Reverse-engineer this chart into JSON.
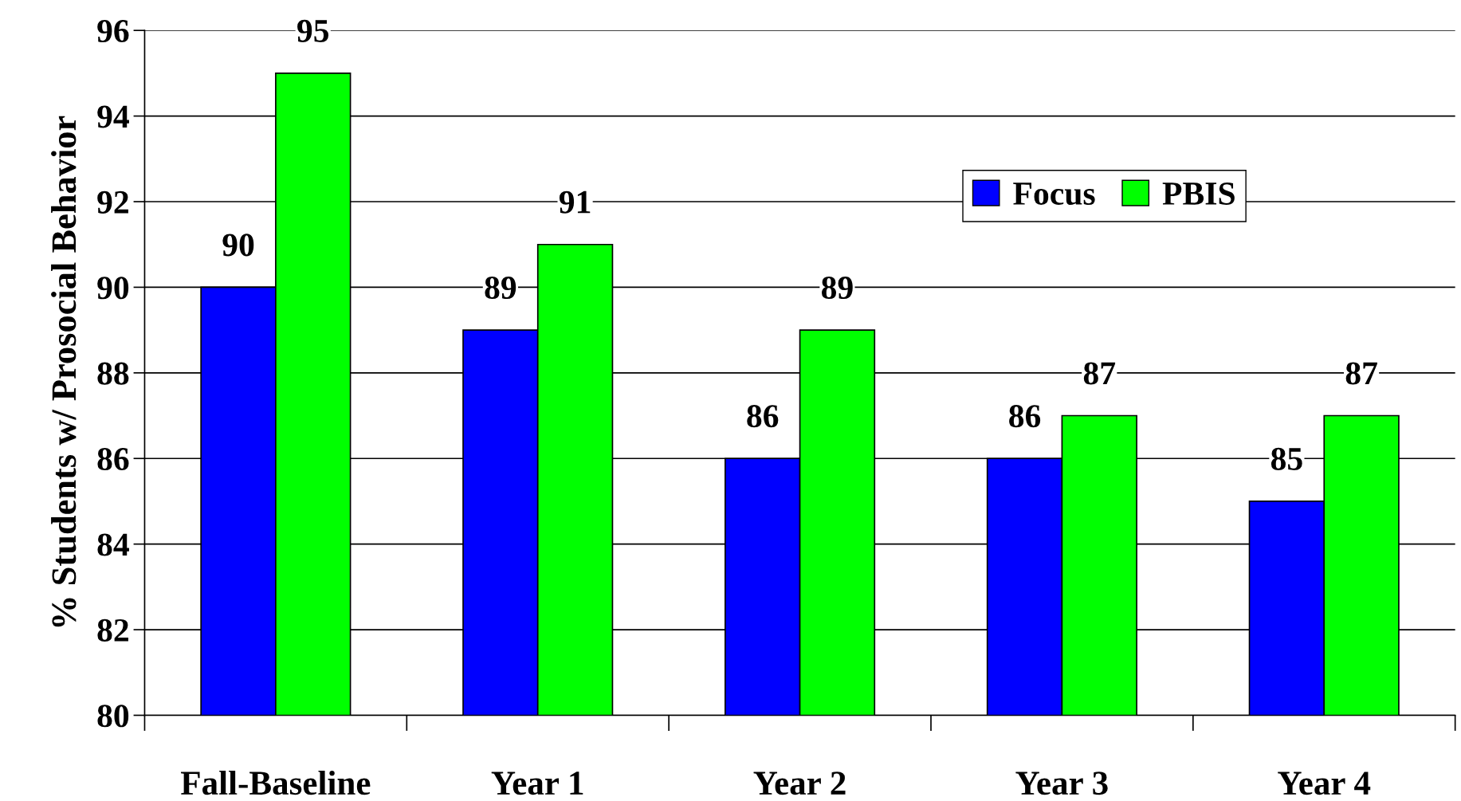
{
  "chart_data": {
    "type": "bar",
    "ylabel": "% Students w/ Prosocial Behavior",
    "categories": [
      "Fall-Baseline",
      "Year 1",
      "Year 2",
      "Year 3",
      "Year 4"
    ],
    "series": [
      {
        "name": "Focus",
        "color": "#0000ff",
        "values": [
          90,
          89,
          86,
          86,
          85
        ]
      },
      {
        "name": "PBIS",
        "color": "#00ff00",
        "values": [
          95,
          91,
          89,
          87,
          87
        ]
      }
    ],
    "ylim": [
      80,
      96
    ],
    "yticks": [
      80,
      82,
      84,
      86,
      88,
      90,
      92,
      94,
      96
    ],
    "grid": "y",
    "legend": "top right",
    "data_labels": true
  }
}
